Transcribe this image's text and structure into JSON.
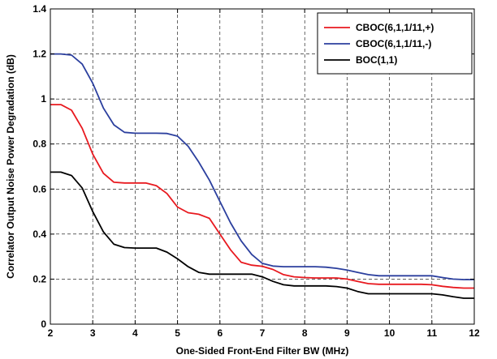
{
  "chart_data": {
    "type": "line",
    "xlabel": "One-Sided Front-End Filter BW (MHz)",
    "ylabel": "Correlator Output Noise Power Degradation (dB)",
    "xlim": [
      2,
      12
    ],
    "ylim": [
      0,
      1.4
    ],
    "xticks": [
      2,
      3,
      4,
      5,
      6,
      7,
      8,
      9,
      10,
      11,
      12
    ],
    "yticks": [
      0,
      0.2,
      0.4,
      0.6,
      0.8,
      1,
      1.2,
      1.4
    ],
    "xtick_labels": [
      "2",
      "3",
      "4",
      "5",
      "6",
      "7",
      "8",
      "9",
      "10",
      "11",
      "12"
    ],
    "ytick_labels": [
      "0",
      "0.2",
      "0.4",
      "0.6",
      "0.8",
      "1",
      "1.2",
      "1.4"
    ],
    "grid": true,
    "legend_position": "top-right",
    "series": [
      {
        "name": "CBOC(6,1,1/11,+)",
        "color": "#e8191f",
        "x": [
          2,
          2.25,
          2.5,
          2.75,
          3,
          3.25,
          3.5,
          3.75,
          4,
          4.25,
          4.5,
          4.75,
          5,
          5.25,
          5.5,
          5.75,
          6,
          6.25,
          6.5,
          6.75,
          7,
          7.25,
          7.5,
          7.75,
          8,
          8.25,
          8.5,
          8.75,
          9,
          9.25,
          9.5,
          9.75,
          10,
          10.25,
          10.5,
          10.75,
          11,
          11.25,
          11.5,
          11.75,
          12
        ],
        "y": [
          0.975,
          0.975,
          0.95,
          0.87,
          0.755,
          0.67,
          0.63,
          0.627,
          0.627,
          0.627,
          0.615,
          0.58,
          0.52,
          0.495,
          0.488,
          0.47,
          0.4,
          0.33,
          0.275,
          0.262,
          0.257,
          0.243,
          0.22,
          0.21,
          0.207,
          0.205,
          0.205,
          0.205,
          0.2,
          0.19,
          0.18,
          0.177,
          0.177,
          0.177,
          0.177,
          0.177,
          0.175,
          0.168,
          0.163,
          0.16,
          0.16
        ]
      },
      {
        "name": "CBOC(6,1,1/11,-)",
        "color": "#2b3f9e",
        "x": [
          2,
          2.25,
          2.5,
          2.75,
          3,
          3.25,
          3.5,
          3.75,
          4,
          4.25,
          4.5,
          4.75,
          5,
          5.25,
          5.5,
          5.75,
          6,
          6.25,
          6.5,
          6.75,
          7,
          7.25,
          7.5,
          7.75,
          8,
          8.25,
          8.5,
          8.75,
          9,
          9.25,
          9.5,
          9.75,
          10,
          10.25,
          10.5,
          10.75,
          11,
          11.25,
          11.5,
          11.75,
          12
        ],
        "y": [
          1.2,
          1.2,
          1.195,
          1.155,
          1.07,
          0.96,
          0.885,
          0.852,
          0.848,
          0.848,
          0.848,
          0.847,
          0.835,
          0.79,
          0.72,
          0.64,
          0.545,
          0.45,
          0.37,
          0.31,
          0.27,
          0.258,
          0.255,
          0.255,
          0.255,
          0.255,
          0.253,
          0.248,
          0.24,
          0.23,
          0.22,
          0.215,
          0.215,
          0.215,
          0.215,
          0.215,
          0.215,
          0.207,
          0.2,
          0.198,
          0.198
        ]
      },
      {
        "name": "BOC(1,1)",
        "color": "#000000",
        "x": [
          2,
          2.25,
          2.5,
          2.75,
          3,
          3.25,
          3.5,
          3.75,
          4,
          4.25,
          4.5,
          4.75,
          5,
          5.25,
          5.5,
          5.75,
          6,
          6.25,
          6.5,
          6.75,
          7,
          7.25,
          7.5,
          7.75,
          8,
          8.25,
          8.5,
          8.75,
          9,
          9.25,
          9.5,
          9.75,
          10,
          10.25,
          10.5,
          10.75,
          11,
          11.25,
          11.5,
          11.75,
          12
        ],
        "y": [
          0.675,
          0.675,
          0.66,
          0.605,
          0.5,
          0.41,
          0.355,
          0.34,
          0.338,
          0.338,
          0.338,
          0.32,
          0.29,
          0.255,
          0.23,
          0.222,
          0.222,
          0.222,
          0.222,
          0.222,
          0.21,
          0.19,
          0.175,
          0.17,
          0.17,
          0.17,
          0.17,
          0.167,
          0.16,
          0.145,
          0.135,
          0.135,
          0.135,
          0.135,
          0.135,
          0.135,
          0.135,
          0.13,
          0.122,
          0.115,
          0.115
        ]
      }
    ]
  }
}
